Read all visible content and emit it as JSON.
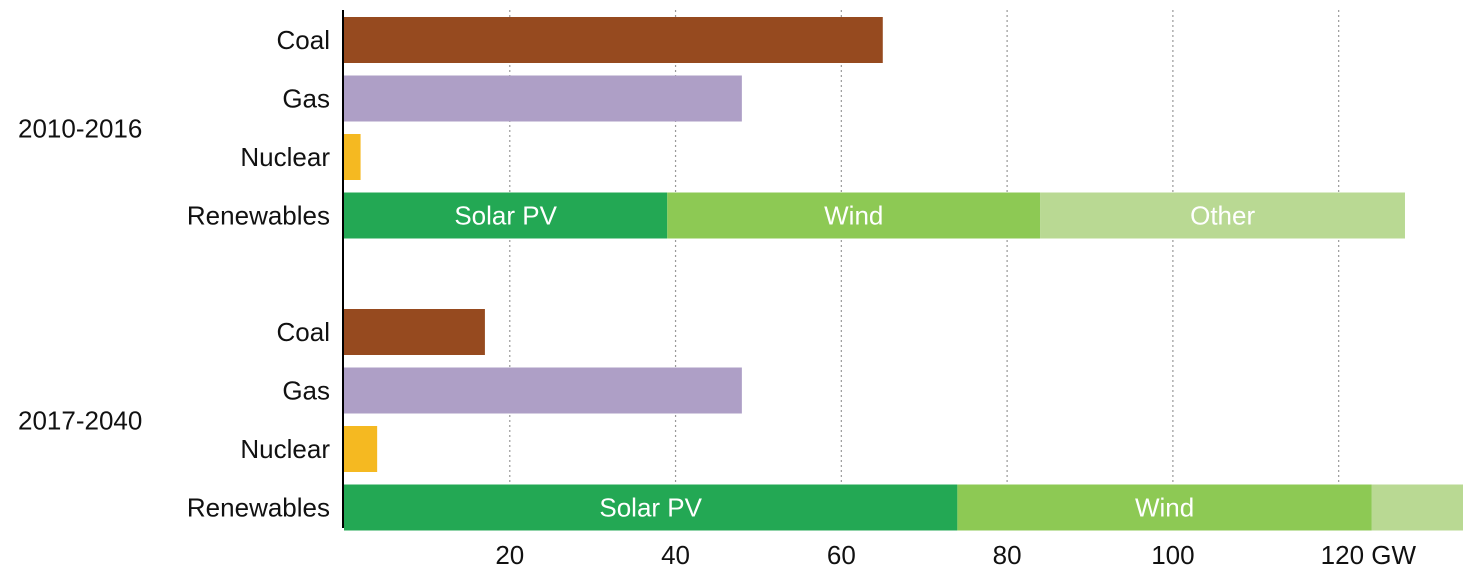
{
  "chart_data": {
    "type": "bar",
    "orientation": "horizontal",
    "stacked": true,
    "xlim": [
      0,
      135
    ],
    "xticks": [
      20,
      40,
      60,
      80,
      100,
      {
        "value": 120,
        "label": "120 GW"
      }
    ],
    "grid": true,
    "groups": [
      {
        "name": "2010-2016",
        "rows": [
          {
            "category": "Coal",
            "segments": [
              {
                "value": 65,
                "color": "#964a1f"
              }
            ]
          },
          {
            "category": "Gas",
            "segments": [
              {
                "value": 48,
                "color": "#ae9fc6"
              }
            ]
          },
          {
            "category": "Nuclear",
            "segments": [
              {
                "value": 2,
                "color": "#f5b921"
              }
            ]
          },
          {
            "category": "Renewables",
            "segments": [
              {
                "name": "Solar PV",
                "value": 39,
                "color": "#23a854"
              },
              {
                "name": "Wind",
                "value": 45,
                "color": "#8dc954"
              },
              {
                "name": "Other",
                "value": 44,
                "color": "#b9d993"
              }
            ]
          }
        ]
      },
      {
        "name": "2017-2040",
        "rows": [
          {
            "category": "Coal",
            "segments": [
              {
                "value": 17,
                "color": "#964a1f"
              }
            ]
          },
          {
            "category": "Gas",
            "segments": [
              {
                "value": 48,
                "color": "#ae9fc6"
              }
            ]
          },
          {
            "category": "Nuclear",
            "segments": [
              {
                "value": 4,
                "color": "#f5b921"
              }
            ]
          },
          {
            "category": "Renewables",
            "segments": [
              {
                "name": "Solar PV",
                "value": 74,
                "color": "#23a854"
              },
              {
                "name": "Wind",
                "value": 50,
                "color": "#8dc954"
              },
              {
                "value": 11,
                "color": "#b9d993"
              }
            ]
          }
        ]
      }
    ]
  }
}
